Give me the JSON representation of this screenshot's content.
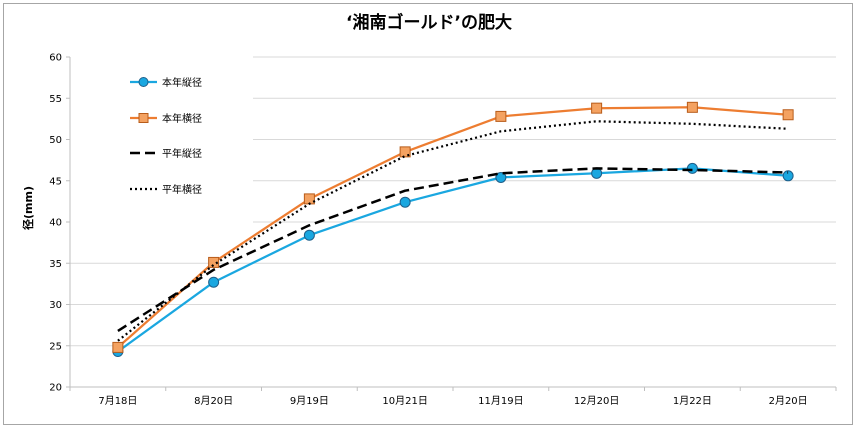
{
  "chart_data": {
    "type": "line",
    "title": "‘湘南ゴールド’の肥大",
    "ylabel": "径(mm)",
    "xlabel": "",
    "ylim": [
      20,
      60
    ],
    "yticks": [
      20,
      25,
      30,
      35,
      40,
      45,
      50,
      55,
      60
    ],
    "grid": true,
    "legend_position": "top-left",
    "categories": [
      "7月18日",
      "8月20日",
      "9月19日",
      "10月21日",
      "11月19日",
      "12月20日",
      "1月22日",
      "2月20日"
    ],
    "series": [
      {
        "name": "本年縦径",
        "values": [
          24.3,
          32.7,
          38.4,
          42.4,
          45.4,
          45.9,
          46.5,
          45.6
        ],
        "color": "#1aa7e0",
        "marker": "circle",
        "dash": "solid"
      },
      {
        "name": "本年横径",
        "values": [
          24.8,
          35.1,
          42.8,
          48.5,
          52.8,
          53.8,
          53.9,
          53.0
        ],
        "color": "#ed7d31",
        "marker": "square",
        "dash": "solid"
      },
      {
        "name": "平年縦径",
        "values": [
          26.8,
          34.2,
          39.6,
          43.8,
          45.9,
          46.5,
          46.3,
          46.0
        ],
        "color": "#000000",
        "marker": "none",
        "dash": "dashed"
      },
      {
        "name": "平年横径",
        "values": [
          25.6,
          34.8,
          42.2,
          48.0,
          51.0,
          52.2,
          51.9,
          51.3
        ],
        "color": "#000000",
        "marker": "none",
        "dash": "dotted"
      }
    ]
  }
}
